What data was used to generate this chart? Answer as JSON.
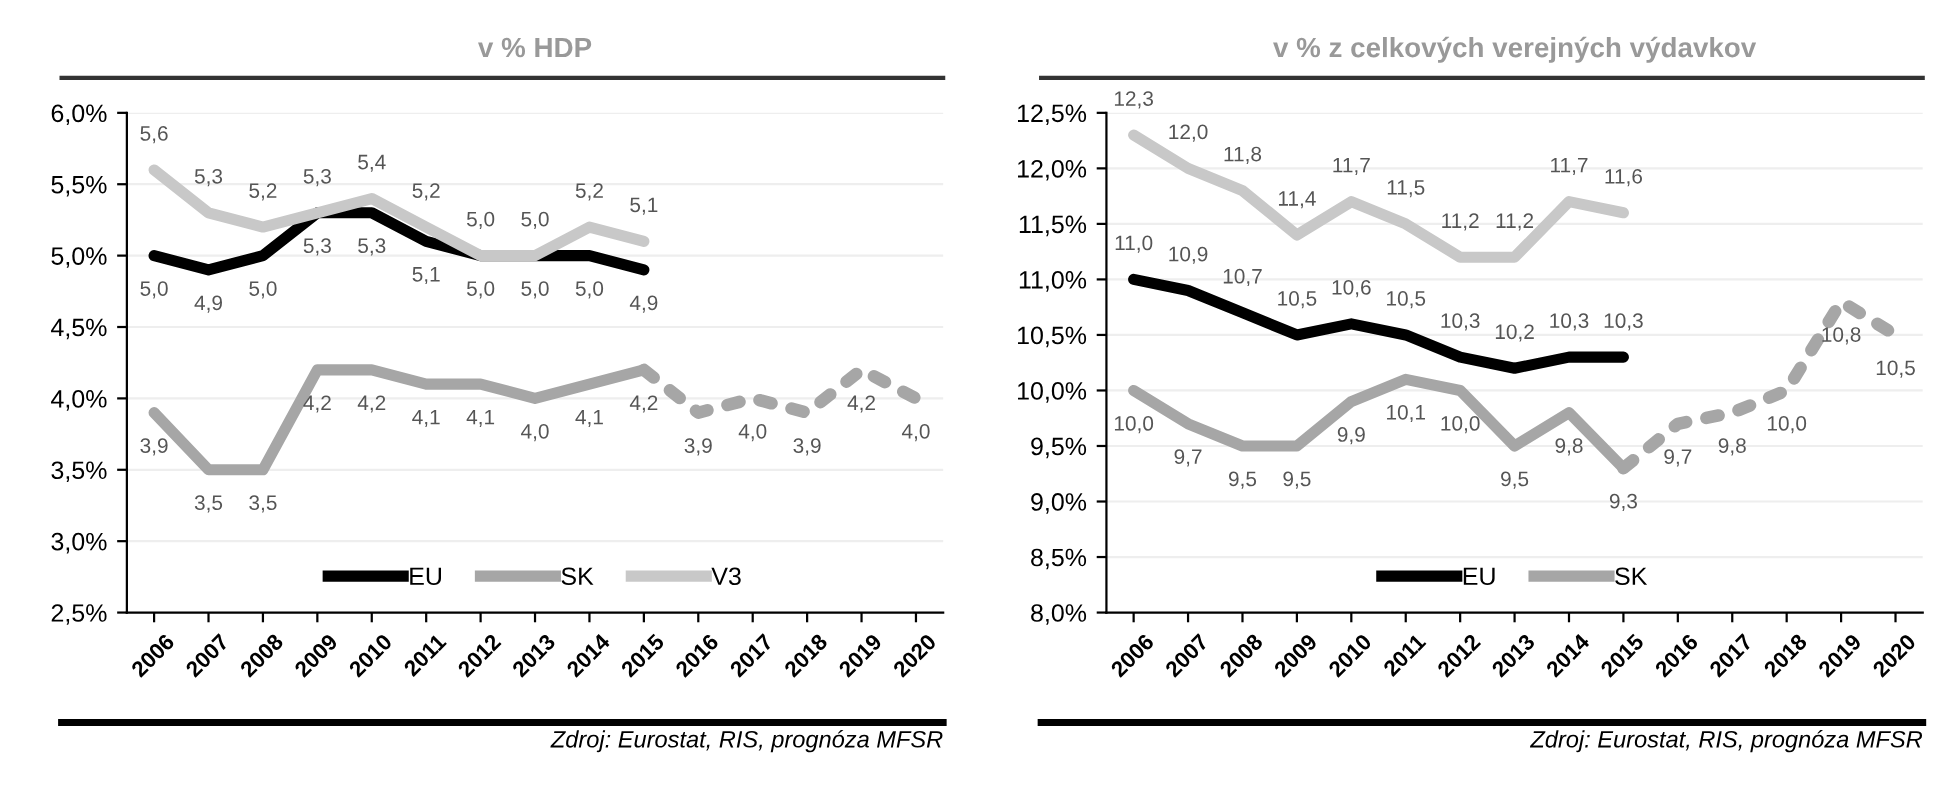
{
  "chart_data": [
    {
      "type": "line",
      "subtitle": "v % HDP",
      "categories": [
        "2006",
        "2007",
        "2008",
        "2009",
        "2010",
        "2011",
        "2012",
        "2013",
        "2014",
        "2015",
        "2016",
        "2017",
        "2018",
        "2019",
        "2020"
      ],
      "series": [
        {
          "name": "EU",
          "color": "#000000",
          "values": [
            5.0,
            4.9,
            5.0,
            5.3,
            5.3,
            5.1,
            5.0,
            5.0,
            5.0,
            4.9,
            null,
            null,
            null,
            null,
            null
          ],
          "value_labels": [
            "5,0",
            "4,9",
            "5,0",
            "5,3",
            "5,3",
            "5,1",
            "5,0",
            "5,0",
            "5,0",
            "4,9",
            null,
            null,
            null,
            null,
            null
          ]
        },
        {
          "name": "SK",
          "color": "#a6a6a6",
          "values": [
            3.9,
            3.5,
            3.5,
            4.2,
            4.2,
            4.1,
            4.1,
            4.0,
            4.1,
            4.2,
            null,
            null,
            null,
            null,
            null
          ],
          "value_labels": [
            "3,9",
            "3,5",
            "3,5",
            "4,2",
            "4,2",
            "4,1",
            "4,1",
            "4,0",
            "4,1",
            "4,2",
            null,
            null,
            null,
            null,
            null
          ]
        },
        {
          "name": "V3",
          "color": "#c8c8c8",
          "values": [
            5.6,
            5.3,
            5.2,
            5.3,
            5.4,
            5.2,
            5.0,
            5.0,
            5.2,
            5.1,
            null,
            null,
            null,
            null,
            null
          ],
          "value_labels": [
            "5,6",
            "5,3",
            "5,2",
            "5,3",
            "5,4",
            "5,2",
            "5,0",
            "5,0",
            "5,2",
            "5,1",
            null,
            null,
            null,
            null,
            null
          ]
        },
        {
          "color": "#a6a6a6",
          "line_style": "dotted",
          "values": [
            null,
            null,
            null,
            null,
            null,
            null,
            null,
            null,
            null,
            4.2,
            3.9,
            4.0,
            3.9,
            4.2,
            4.0
          ],
          "value_labels": [
            null,
            null,
            null,
            null,
            null,
            null,
            null,
            null,
            null,
            null,
            "3,9",
            "4,0",
            "3,9",
            "4,2",
            "4,0"
          ]
        }
      ],
      "ylim": [
        2.5,
        6.0
      ],
      "yticks": [
        {
          "value": 2.5,
          "label": "2,5%"
        },
        {
          "value": 3.0,
          "label": "3,0%"
        },
        {
          "value": 3.5,
          "label": "3,5%"
        },
        {
          "value": 4.0,
          "label": "4,0%"
        },
        {
          "value": 4.5,
          "label": "4,5%"
        },
        {
          "value": 5.0,
          "label": "5,0%"
        },
        {
          "value": 5.5,
          "label": "5,5%"
        },
        {
          "value": 6.0,
          "label": "6,0%"
        }
      ],
      "grid": "y",
      "legend": "bottom",
      "marker": "none",
      "line_style": "solid",
      "annotations": [
        "Zdroj: Eurostat, RIS, prognóza MFSR"
      ]
    },
    {
      "type": "line",
      "subtitle": "v % z celkových verejných výdavkov",
      "categories": [
        "2006",
        "2007",
        "2008",
        "2009",
        "2010",
        "2011",
        "2012",
        "2013",
        "2014",
        "2015",
        "2016",
        "2017",
        "2018",
        "2019",
        "2020"
      ],
      "series": [
        {
          "name": "EU",
          "color": "#000000",
          "values": [
            11.0,
            10.9,
            10.7,
            10.5,
            10.6,
            10.5,
            10.3,
            10.2,
            10.3,
            10.3,
            null,
            null,
            null,
            null,
            null
          ],
          "value_labels": [
            "11,0",
            "10,9",
            "10,7",
            "10,5",
            "10,6",
            "10,5",
            "10,3",
            "10,2",
            "10,3",
            "10,3",
            null,
            null,
            null,
            null,
            null
          ]
        },
        {
          "name": "SK",
          "color": "#a6a6a6",
          "values": [
            10.0,
            9.7,
            9.5,
            9.5,
            9.9,
            10.1,
            10.0,
            9.5,
            9.8,
            9.3,
            null,
            null,
            null,
            null,
            null
          ],
          "value_labels": [
            "10,0",
            "9,7",
            "9,5",
            "9,5",
            "9,9",
            "10,1",
            "10,0",
            "9,5",
            "9,8",
            "9,3",
            null,
            null,
            null,
            null,
            null
          ]
        },
        {
          "color": "#c8c8c8",
          "values": [
            12.3,
            12.0,
            11.8,
            11.4,
            11.7,
            11.5,
            11.2,
            11.2,
            11.7,
            11.6,
            null,
            null,
            null,
            null,
            null
          ],
          "value_labels": [
            "12,3",
            "12,0",
            "11,8",
            "11,4",
            "11,7",
            "11,5",
            "11,2",
            "11,2",
            "11,7",
            "11,6",
            null,
            null,
            null,
            null,
            null
          ]
        },
        {
          "color": "#a6a6a6",
          "line_style": "dotted",
          "values": [
            null,
            null,
            null,
            null,
            null,
            null,
            null,
            null,
            null,
            9.3,
            9.7,
            9.8,
            10.0,
            10.8,
            10.5
          ],
          "value_labels": [
            null,
            null,
            null,
            null,
            null,
            null,
            null,
            null,
            null,
            null,
            "9,7",
            "9,8",
            "10,0",
            "10,8",
            "10,5"
          ]
        }
      ],
      "ylim": [
        8.0,
        12.5
      ],
      "yticks": [
        {
          "value": 8.0,
          "label": "8,0%"
        },
        {
          "value": 8.5,
          "label": "8,5%"
        },
        {
          "value": 9.0,
          "label": "9,0%"
        },
        {
          "value": 9.5,
          "label": "9,5%"
        },
        {
          "value": 10.0,
          "label": "10,0%"
        },
        {
          "value": 10.5,
          "label": "10,5%"
        },
        {
          "value": 11.0,
          "label": "11,0%"
        },
        {
          "value": 11.5,
          "label": "11,5%"
        },
        {
          "value": 12.0,
          "label": "12,0%"
        },
        {
          "value": 12.5,
          "label": "12,5%"
        }
      ],
      "grid": "y",
      "legend": "bottom",
      "marker": "none",
      "line_style": "solid",
      "annotations": [
        "Zdroj: Eurostat, RIS, prognóza MFSR"
      ]
    }
  ]
}
